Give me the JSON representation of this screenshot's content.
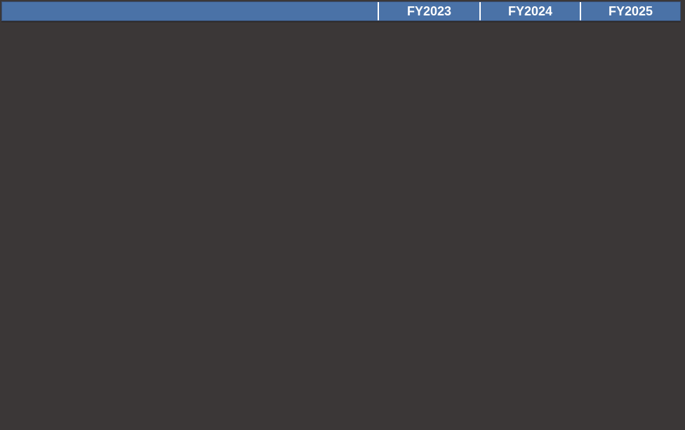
{
  "table": {
    "header": {
      "row_label_cell": "",
      "columns": [
        {
          "label": "FY2023"
        },
        {
          "label": "FY2024"
        },
        {
          "label": "FY2025"
        }
      ]
    },
    "body": {
      "visible_text": ""
    }
  },
  "colors": {
    "header_bg": "#4a72a7",
    "header_edge": "#3a5176",
    "header_text": "#ffffff",
    "divider": "#ffffff",
    "body_bg": "#3b3737",
    "under_header_line": "#2f2c2e"
  }
}
